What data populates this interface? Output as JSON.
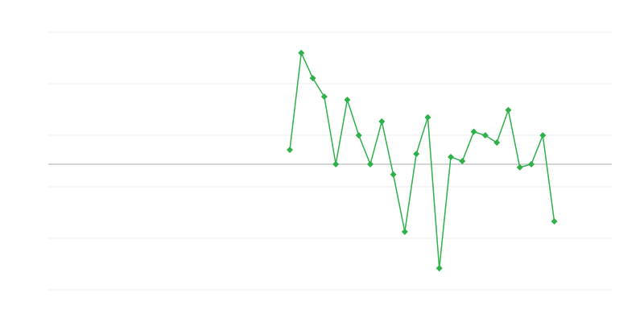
{
  "chart_data": {
    "type": "line",
    "title": "",
    "xlabel": "",
    "ylabel": "",
    "grid": true,
    "legend": "none",
    "x_slots": 50,
    "x": [
      21,
      22,
      23,
      24,
      25,
      26,
      27,
      28,
      29,
      30,
      31,
      32,
      33,
      34,
      35,
      36,
      37,
      38,
      39,
      40,
      41,
      42,
      43,
      44
    ],
    "series": [
      {
        "color": "#2eb04a",
        "marker": "diamond",
        "values": [
          0.28,
          2.16,
          1.67,
          1.31,
          0,
          1.25,
          0.56,
          0,
          0.83,
          -0.2,
          -1.31,
          0.2,
          0.91,
          -2.02,
          0.14,
          0.06,
          0.63,
          0.56,
          0.42,
          1.05,
          -0.06,
          0,
          0.56,
          -1.11
        ]
      }
    ],
    "ylim": [
      -2.4375,
      2.5625
    ],
    "zero_line_color": "#aaaaaa",
    "grid_color": "#eeeeee"
  }
}
